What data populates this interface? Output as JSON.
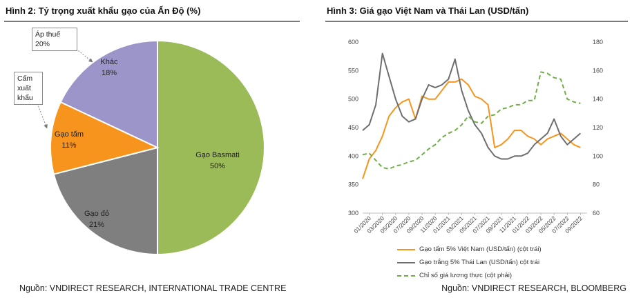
{
  "left": {
    "title": "Hình 2: Tỷ trọng xuất khẩu gạo của Ấn Độ (%)",
    "source": "Nguồn: VNDIRECT RESEARCH, INTERNATIONAL TRADE CENTRE",
    "notes": [
      {
        "lines": [
          "Áp thuế",
          "20%"
        ]
      },
      {
        "lines": [
          "Cấm",
          "xuất",
          "khẩu"
        ]
      }
    ]
  },
  "right": {
    "title": "Hình 3: Giá gạo Việt Nam và Thái Lan (USD/tấn)",
    "source": "Nguồn: VNDIRECT RESEARCH, BLOOMBERG"
  },
  "chart_data": [
    {
      "type": "pie",
      "labels": [
        "Gạo Basmati",
        "Gạo đỏ",
        "Gạo tấm",
        "Khác"
      ],
      "values": [
        50,
        21,
        11,
        18
      ],
      "value_labels": [
        "50%",
        "21%",
        "11%",
        "18%"
      ],
      "colors": [
        "#9bbb59",
        "#7f7f80",
        "#f7941d",
        "#9b95c9"
      ]
    },
    {
      "type": "line",
      "x_ticks": [
        "01/2020",
        "03/2020",
        "05/2020",
        "07/2020",
        "09/2020",
        "11/2020",
        "01/2021",
        "03/2021",
        "05/2021",
        "07/2021",
        "09/2021",
        "11/2021",
        "01/2022",
        "03/2022",
        "05/2022",
        "07/2022",
        "09/2022"
      ],
      "ylim_left": [
        300,
        600
      ],
      "yticks_left": [
        300,
        350,
        400,
        450,
        500,
        550,
        600
      ],
      "ylim_right": [
        60,
        180
      ],
      "yticks_right": [
        60,
        80,
        100,
        120,
        140,
        160,
        180
      ],
      "series": [
        {
          "name": "Gạo tấm 5% Việt Nam (USD/tấn) (cột trái)",
          "axis": "left",
          "color": "#f7941d",
          "style": "solid",
          "x": [
            "2020-01",
            "2020-02",
            "2020-03",
            "2020-04",
            "2020-05",
            "2020-06",
            "2020-07",
            "2020-08",
            "2020-09",
            "2020-10",
            "2020-11",
            "2020-12",
            "2021-01",
            "2021-02",
            "2021-03",
            "2021-04",
            "2021-05",
            "2021-06",
            "2021-07",
            "2021-08",
            "2021-09",
            "2021-10",
            "2021-11",
            "2021-12",
            "2022-01",
            "2022-02",
            "2022-03",
            "2022-04",
            "2022-05",
            "2022-06",
            "2022-07",
            "2022-08",
            "2022-09",
            "2022-10"
          ],
          "values": [
            360,
            395,
            410,
            435,
            470,
            485,
            495,
            500,
            465,
            505,
            500,
            500,
            515,
            530,
            530,
            535,
            525,
            505,
            500,
            490,
            415,
            420,
            430,
            445,
            445,
            435,
            430,
            420,
            430,
            435,
            440,
            430,
            420,
            415
          ]
        },
        {
          "name": "Gạo trắng 5% Thái Lan (USD/tấn) cột trái",
          "axis": "left",
          "color": "#6d6e70",
          "style": "solid",
          "x": [
            "2020-01",
            "2020-02",
            "2020-03",
            "2020-04",
            "2020-05",
            "2020-06",
            "2020-07",
            "2020-08",
            "2020-09",
            "2020-10",
            "2020-11",
            "2020-12",
            "2021-01",
            "2021-02",
            "2021-03",
            "2021-04",
            "2021-05",
            "2021-06",
            "2021-07",
            "2021-08",
            "2021-09",
            "2021-10",
            "2021-11",
            "2021-12",
            "2022-01",
            "2022-02",
            "2022-03",
            "2022-04",
            "2022-05",
            "2022-06",
            "2022-07",
            "2022-08",
            "2022-09",
            "2022-10"
          ],
          "values": [
            445,
            455,
            490,
            580,
            540,
            500,
            470,
            460,
            465,
            500,
            525,
            520,
            525,
            535,
            570,
            515,
            480,
            455,
            440,
            415,
            400,
            395,
            395,
            400,
            400,
            405,
            420,
            430,
            440,
            465,
            435,
            420,
            430,
            440
          ]
        },
        {
          "name": "Chỉ số giá lương thực (cột phải)",
          "axis": "right",
          "color": "#70ad47",
          "style": "dashed",
          "x": [
            "2020-01",
            "2020-02",
            "2020-03",
            "2020-04",
            "2020-05",
            "2020-06",
            "2020-07",
            "2020-08",
            "2020-09",
            "2020-10",
            "2020-11",
            "2020-12",
            "2021-01",
            "2021-02",
            "2021-03",
            "2021-04",
            "2021-05",
            "2021-06",
            "2021-07",
            "2021-08",
            "2021-09",
            "2021-10",
            "2021-11",
            "2021-12",
            "2022-01",
            "2022-02",
            "2022-03",
            "2022-04",
            "2022-05",
            "2022-06",
            "2022-07",
            "2022-08",
            "2022-09",
            "2022-10"
          ],
          "values": [
            101,
            102,
            97,
            92,
            91,
            93,
            94,
            96,
            97,
            101,
            105,
            108,
            113,
            116,
            118,
            122,
            128,
            124,
            123,
            128,
            129,
            133,
            134,
            136,
            136,
            139,
            139,
            159,
            158,
            155,
            154,
            140,
            138,
            137
          ]
        }
      ]
    }
  ]
}
